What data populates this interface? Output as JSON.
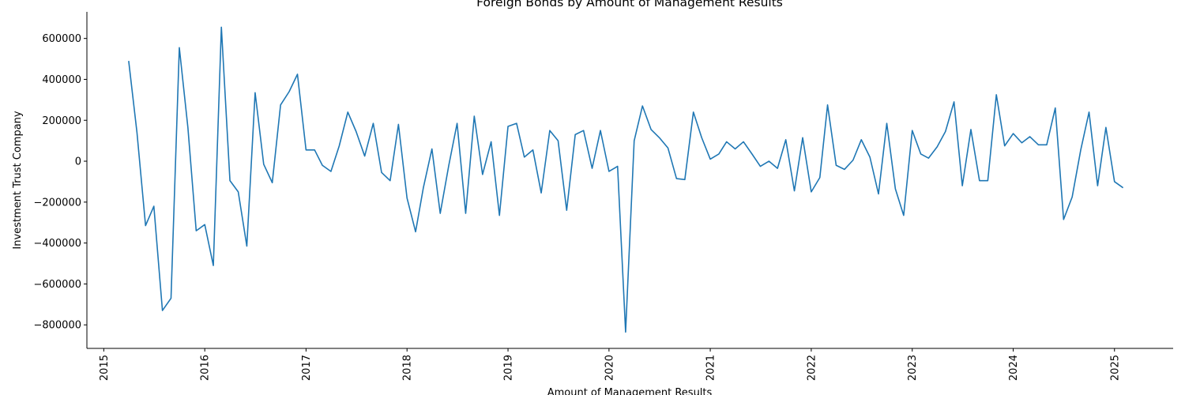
{
  "chart_data": {
    "type": "line",
    "title": "Foreign Bonds by Amount of Management Results",
    "xlabel": "Amount of Management Results",
    "ylabel": "Investment Trust Company",
    "x_tick_labels": [
      "2015",
      "2016",
      "2017",
      "2018",
      "2019",
      "2020",
      "2021",
      "2022",
      "2023",
      "2024",
      "2025"
    ],
    "y_tick_labels": [
      "−800000",
      "−600000",
      "−400000",
      "−200000",
      "0",
      "200000",
      "400000",
      "600000"
    ],
    "y_ticks": [
      -800000,
      -600000,
      -400000,
      -200000,
      0,
      200000,
      400000,
      600000
    ],
    "xlim": [
      "2014-11-01",
      "2025-08-01"
    ],
    "ylim": [
      -915000,
      730000
    ],
    "grid": false,
    "line_color": "#1f77b4",
    "series": [
      {
        "x": [
          "2015-04",
          "2015-05",
          "2015-06",
          "2015-07",
          "2015-08",
          "2015-09",
          "2015-10",
          "2015-11",
          "2015-12",
          "2016-01",
          "2016-02",
          "2016-03",
          "2016-04",
          "2016-05",
          "2016-06",
          "2016-07",
          "2016-08",
          "2016-09",
          "2016-10",
          "2016-11",
          "2016-12",
          "2017-01",
          "2017-02",
          "2017-03",
          "2017-04",
          "2017-05",
          "2017-06",
          "2017-07",
          "2017-08",
          "2017-09",
          "2017-10",
          "2017-11",
          "2017-12",
          "2018-01",
          "2018-02",
          "2018-03",
          "2018-04",
          "2018-05",
          "2018-06",
          "2018-07",
          "2018-08",
          "2018-09",
          "2018-10",
          "2018-11",
          "2018-12",
          "2019-01",
          "2019-02",
          "2019-03",
          "2019-04",
          "2019-05",
          "2019-06",
          "2019-07",
          "2019-08",
          "2019-09",
          "2019-10",
          "2019-11",
          "2019-12",
          "2020-01",
          "2020-02",
          "2020-03",
          "2020-04",
          "2020-05",
          "2020-06",
          "2020-07",
          "2020-08",
          "2020-09",
          "2020-10",
          "2020-11",
          "2020-12",
          "2021-01",
          "2021-02",
          "2021-03",
          "2021-04",
          "2021-05",
          "2021-06",
          "2021-07",
          "2021-08",
          "2021-09",
          "2021-10",
          "2021-11",
          "2021-12",
          "2022-01",
          "2022-02",
          "2022-03",
          "2022-04",
          "2022-05",
          "2022-06",
          "2022-07",
          "2022-08",
          "2022-09",
          "2022-10",
          "2022-11",
          "2022-12",
          "2023-01",
          "2023-02",
          "2023-03",
          "2023-04",
          "2023-05",
          "2023-06",
          "2023-07",
          "2023-08",
          "2023-09",
          "2023-10",
          "2023-11",
          "2023-12",
          "2024-01",
          "2024-02",
          "2024-03",
          "2024-04",
          "2024-05",
          "2024-06",
          "2024-07",
          "2024-08",
          "2024-09",
          "2024-10",
          "2024-11",
          "2024-12",
          "2025-01",
          "2025-02"
        ],
        "values": [
          490000,
          140000,
          -315000,
          -220000,
          -730000,
          -670000,
          555000,
          165000,
          -340000,
          -310000,
          -510000,
          655000,
          -95000,
          -150000,
          -415000,
          335000,
          -15000,
          -105000,
          275000,
          340000,
          425000,
          55000,
          55000,
          -20000,
          -50000,
          75000,
          240000,
          145000,
          25000,
          185000,
          -55000,
          -95000,
          180000,
          -180000,
          -345000,
          -130000,
          60000,
          -255000,
          -20000,
          185000,
          -255000,
          220000,
          -65000,
          95000,
          -265000,
          170000,
          185000,
          20000,
          55000,
          -155000,
          150000,
          100000,
          -240000,
          130000,
          150000,
          -35000,
          150000,
          -50000,
          -25000,
          -835000,
          100000,
          270000,
          155000,
          115000,
          65000,
          -85000,
          -90000,
          240000,
          115000,
          10000,
          35000,
          95000,
          60000,
          95000,
          35000,
          -25000,
          0,
          -35000,
          105000,
          -145000,
          115000,
          -150000,
          -80000,
          275000,
          -20000,
          -40000,
          5000,
          105000,
          20000,
          -160000,
          185000,
          -135000,
          -265000,
          150000,
          35000,
          15000,
          70000,
          145000,
          290000,
          -120000,
          155000,
          -95000,
          -95000,
          325000,
          75000,
          135000,
          90000,
          120000,
          80000,
          80000,
          260000,
          -285000,
          -175000,
          55000,
          240000,
          -120000,
          165000,
          -100000,
          -130000
        ]
      }
    ]
  }
}
